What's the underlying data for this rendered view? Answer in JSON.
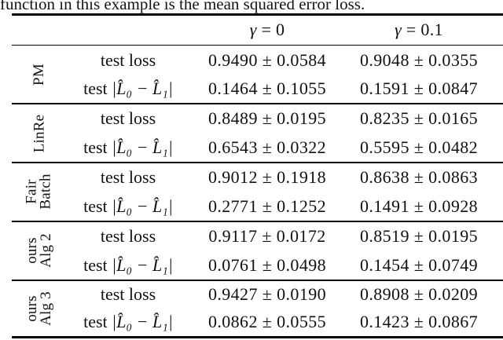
{
  "page": {
    "caption": "function in this example is the mean squared error loss."
  },
  "table": {
    "header": {
      "col1": {
        "sym": "γ",
        "rest": " = 0"
      },
      "col2": {
        "sym": "γ",
        "rest": " = 0.1"
      }
    },
    "metric_labels": {
      "loss": "test loss",
      "gap_prefix": "test ",
      "gap_math": "|L̂₀ − L̂₁|"
    },
    "groups": [
      {
        "label": "PM",
        "rows": [
          {
            "label": "test loss",
            "math": "",
            "values": [
              "0.9490 ± 0.0584",
              "0.9048 ± 0.0355"
            ]
          },
          {
            "label": "test ",
            "math": "|L̂₀ − L̂₁|",
            "values": [
              "0.1464 ± 0.1055",
              "0.1591 ± 0.0847"
            ]
          }
        ]
      },
      {
        "label": "LinRe",
        "rows": [
          {
            "label": "test loss",
            "math": "",
            "values": [
              "0.8489 ± 0.0195",
              "0.8235 ± 0.0165"
            ]
          },
          {
            "label": "test ",
            "math": "|L̂₀ − L̂₁|",
            "values": [
              "0.6543 ± 0.0322",
              "0.5595 ± 0.0482"
            ]
          }
        ]
      },
      {
        "label": "Fair\nBatch",
        "rows": [
          {
            "label": "test loss",
            "math": "",
            "values": [
              "0.9012 ± 0.1918",
              "0.8638 ± 0.0863"
            ]
          },
          {
            "label": "test ",
            "math": "|L̂₀ − L̂₁|",
            "values": [
              "0.2771 ± 0.1252",
              "0.1491 ± 0.0928"
            ]
          }
        ]
      },
      {
        "label": "ours\nAlg 2",
        "rows": [
          {
            "label": "test loss",
            "math": "",
            "values": [
              "0.9117 ± 0.0172",
              "0.8519 ± 0.0195"
            ]
          },
          {
            "label": "test ",
            "math": "|L̂₀ − L̂₁|",
            "values": [
              "0.0761 ± 0.0498",
              "0.1454 ± 0.0749"
            ]
          }
        ]
      },
      {
        "label": "ours\nAlg 3",
        "rows": [
          {
            "label": "test loss",
            "math": "",
            "values": [
              "0.9427 ± 0.0190",
              "0.8908 ± 0.0209"
            ]
          },
          {
            "label": "test ",
            "math": "|L̂₀ − L̂₁|",
            "values": [
              "0.0862 ± 0.0555",
              "0.1423 ± 0.0867"
            ]
          }
        ]
      }
    ]
  }
}
